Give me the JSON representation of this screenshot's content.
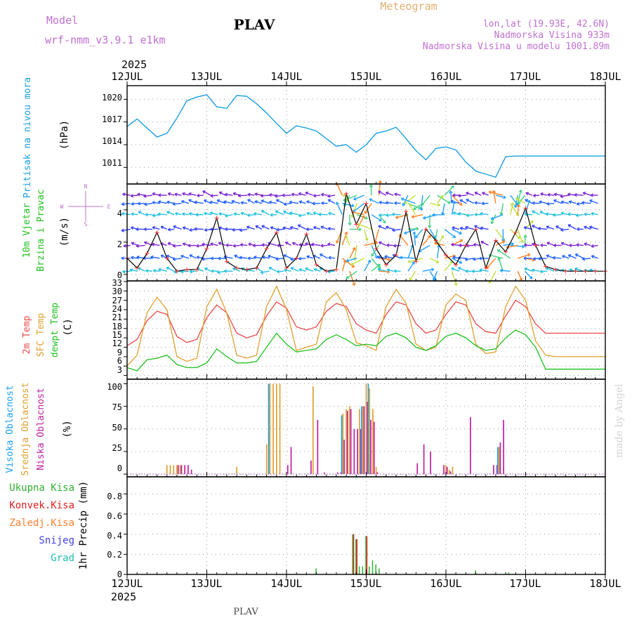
{
  "header": {
    "model_label": "Model",
    "model_name": "wrf-nmm_v3.9.1  e1km",
    "station": "PLAV",
    "meteogram": "Meteogram",
    "lonlat": "lon,lat (19.93E, 42.6N)",
    "elevation": "Nadmorska Visina 933m",
    "model_elevation": "Nadmorska Visina u modelu 1001.89m",
    "credit": "made by Angel",
    "footer_station": "PLAV"
  },
  "time_axis": {
    "year_top": "2025",
    "year_bottom": "2025",
    "ticks": [
      "12JUL",
      "13JUL",
      "14JUL",
      "15JUL",
      "16JUL",
      "17JUL",
      "18JUL"
    ]
  },
  "panels": {
    "pressure": {
      "title": "Pritisak na nivou mora",
      "unit": "(hPa)",
      "ticks": [
        "1011",
        "1014",
        "1017",
        "1020"
      ]
    },
    "wind": {
      "title1": "10m Vjetar",
      "title2": "Brzina i Pravac",
      "unit": "(m/s)",
      "ticks": [
        "0",
        "2",
        "4"
      ],
      "compass": {
        "n": "N",
        "s": "S",
        "w": "W",
        "e": "E"
      }
    },
    "temp": {
      "title1": "2m Temp",
      "title2": "SFC Temp",
      "title3": "dewpt Temp",
      "unit": "(C)",
      "ticks": [
        "3",
        "6",
        "9",
        "12",
        "15",
        "18",
        "21",
        "24",
        "27",
        "30",
        "33"
      ]
    },
    "cloud": {
      "title1": "Visoka Oblacnost",
      "title2": "Srednja Oblacnost",
      "title3": "Niska Oblacnost",
      "unit": "(%)",
      "ticks": [
        "0",
        "25",
        "50",
        "75",
        "100"
      ]
    },
    "precip": {
      "title": "1hr Precip (mm)",
      "ticks": [
        "0",
        "0.2",
        "0.4",
        "0.6",
        "0.8"
      ],
      "legend": [
        "Ukupna Kisa",
        "Konvek.Kisa",
        "Zaledj.Kisa",
        "Snijeg",
        "Grad"
      ]
    }
  },
  "colors": {
    "pressure": "#1aa0e0",
    "wind_line": "#000000",
    "wind_marks": "#ff3030",
    "t2m": "#e84848",
    "tsfc": "#e0a030",
    "dewpt": "#20c020",
    "cloud_high": "#1aa0e8",
    "cloud_mid": "#e0a030",
    "cloud_low": "#c020a0",
    "precip_total": "#30b030",
    "precip_conv": "#e02020",
    "precip_frz": "#ff8030",
    "precip_snow": "#4040e0",
    "precip_hail": "#20c0b0"
  },
  "chart_data": [
    {
      "type": "line",
      "title": "Pritisak na nivou mora",
      "ylabel": "(hPa)",
      "ylim": [
        1008.8,
        1021.8
      ],
      "x": [
        0,
        3,
        6,
        9,
        12,
        15,
        18,
        21,
        24,
        27,
        30,
        33,
        36,
        39,
        42,
        45,
        48,
        51,
        54,
        57,
        60,
        63,
        66,
        69,
        72,
        75,
        78,
        81,
        84,
        87,
        90,
        93,
        96,
        99,
        102,
        105,
        108,
        111,
        114,
        117,
        120,
        123,
        126,
        129,
        132,
        135,
        138,
        141,
        144
      ],
      "series": [
        {
          "name": "Pritisak na nivou mora",
          "values": [
            1016.4,
            1017.4,
            1016.2,
            1015.0,
            1015.5,
            1017.5,
            1019.8,
            1020.3,
            1020.6,
            1019.0,
            1018.8,
            1020.5,
            1020.4,
            1019.4,
            1018.2,
            1016.8,
            1015.5,
            1016.5,
            1016.2,
            1015.8,
            1014.8,
            1013.8,
            1014.0,
            1013.0,
            1014.0,
            1015.5,
            1015.8,
            1016.3,
            1014.8,
            1013.2,
            1012.0,
            1013.5,
            1013.7,
            1013.3,
            1011.7,
            1010.5,
            1010.1,
            1009.7,
            1012.4,
            1012.5,
            1012.5,
            1012.5,
            1012.5,
            1012.5,
            1012.5,
            1012.5,
            1012.5,
            1012.5,
            1012.5
          ]
        }
      ]
    },
    {
      "type": "line",
      "title": "10m Vjetar Brzina i Pravac",
      "ylabel": "(m/s)",
      "ylim": [
        -0.4,
        5.6
      ],
      "x": [
        0,
        3,
        6,
        9,
        12,
        15,
        18,
        21,
        24,
        27,
        30,
        33,
        36,
        39,
        42,
        45,
        48,
        51,
        54,
        57,
        60,
        63,
        66,
        69,
        72,
        75,
        78,
        81,
        84,
        87,
        90,
        93,
        96,
        99,
        102,
        105,
        108,
        111,
        114,
        117,
        120,
        123,
        126,
        129,
        132,
        135,
        138,
        141,
        144
      ],
      "series": [
        {
          "name": "10m Vjetar",
          "values": [
            1.0,
            0.4,
            1.3,
            2.6,
            1.0,
            0.2,
            0.3,
            0.3,
            1.6,
            3.5,
            0.8,
            0.4,
            0.3,
            0.4,
            1.6,
            2.6,
            0.4,
            1.0,
            2.5,
            0.6,
            0.2,
            0.3,
            5.0,
            3.1,
            4.4,
            1.6,
            0.6,
            1.2,
            3.9,
            0.8,
            2.8,
            2.1,
            1.2,
            0.6,
            1.8,
            2.8,
            0.4,
            2.1,
            1.4,
            2.6,
            4.1,
            1.8,
            0.5,
            0.3,
            0.2,
            0.2,
            0.2,
            0.2,
            0.2
          ]
        }
      ]
    },
    {
      "type": "line",
      "title": "2m Temp / SFC Temp / dewpt Temp",
      "ylabel": "(C)",
      "ylim": [
        1.8,
        33.2
      ],
      "x": [
        0,
        3,
        6,
        9,
        12,
        15,
        18,
        21,
        24,
        27,
        30,
        33,
        36,
        39,
        42,
        45,
        48,
        51,
        54,
        57,
        60,
        63,
        66,
        69,
        72,
        75,
        78,
        81,
        84,
        87,
        90,
        93,
        96,
        99,
        102,
        105,
        108,
        111,
        114,
        117,
        120,
        123,
        126,
        129,
        132,
        135,
        138,
        141,
        144
      ],
      "series": [
        {
          "name": "2m Temp",
          "values": [
            12.5,
            14.5,
            20.5,
            23.5,
            22.5,
            15.5,
            13.5,
            14.5,
            21.5,
            25.5,
            23.0,
            16.5,
            15.0,
            16.0,
            22.0,
            26.5,
            24.5,
            18.5,
            17.5,
            18.5,
            23.5,
            26.0,
            25.0,
            19.5,
            17.5,
            16.5,
            22.5,
            26.5,
            25.5,
            19.5,
            16.5,
            17.5,
            22.5,
            26.5,
            25.5,
            19.5,
            17.0,
            16.5,
            22.0,
            27.0,
            25.0,
            19.5,
            16.5,
            16.5,
            16.5,
            16.5,
            16.5,
            16.5,
            16.5
          ]
        },
        {
          "name": "SFC Temp",
          "values": [
            6.0,
            9.5,
            23.0,
            28.0,
            24.0,
            9.0,
            7.5,
            8.5,
            25.0,
            30.5,
            23.0,
            9.5,
            8.5,
            9.5,
            25.0,
            31.5,
            24.0,
            11.0,
            12.0,
            13.0,
            26.5,
            29.5,
            24.0,
            13.5,
            12.5,
            11.0,
            25.0,
            30.5,
            26.0,
            13.0,
            11.0,
            12.0,
            25.5,
            29.0,
            27.0,
            13.0,
            10.0,
            10.5,
            25.0,
            31.5,
            27.0,
            14.0,
            9.5,
            9.0,
            9.0,
            9.0,
            9.0,
            9.0,
            9.0
          ]
        },
        {
          "name": "dewpt Temp",
          "values": [
            5.5,
            4.5,
            8.0,
            8.5,
            9.5,
            6.5,
            5.5,
            5.5,
            7.0,
            11.5,
            9.0,
            7.0,
            7.0,
            7.5,
            12.0,
            16.5,
            13.0,
            10.5,
            11.0,
            11.5,
            14.5,
            16.0,
            14.5,
            12.5,
            13.0,
            12.5,
            15.5,
            16.5,
            15.0,
            12.0,
            11.0,
            12.5,
            15.5,
            16.5,
            15.0,
            12.5,
            11.0,
            11.5,
            15.0,
            17.5,
            16.0,
            12.0,
            5.0,
            5.0,
            5.0,
            5.0,
            5.0,
            5.0,
            5.0
          ]
        }
      ]
    },
    {
      "type": "bar",
      "title": "Visoka / Srednja / Niska Oblacnost",
      "ylabel": "(%)",
      "ylim": [
        -3,
        105
      ],
      "x": [
        12,
        13,
        14,
        15,
        16,
        17,
        18,
        19,
        21,
        33,
        42,
        43,
        44,
        45,
        46,
        47,
        48,
        49,
        55,
        56,
        57,
        59,
        63,
        64,
        65,
        66,
        67,
        68,
        69,
        70,
        71,
        72,
        73,
        74,
        75,
        87,
        89,
        91,
        95,
        96,
        97,
        98,
        103,
        110,
        111,
        112,
        113,
        115
      ],
      "series": [
        {
          "name": "Visoka Oblacnost",
          "values": [
            0,
            0,
            0,
            0,
            0,
            0,
            0,
            0,
            0,
            0,
            0,
            100,
            0,
            0,
            0,
            0,
            0,
            0,
            0,
            0,
            0,
            0,
            0,
            0,
            65,
            0,
            0,
            0,
            0,
            0,
            75,
            0,
            100,
            0,
            0,
            0,
            0,
            0,
            0,
            0,
            0,
            0,
            0,
            0,
            0,
            30,
            0,
            0
          ]
        },
        {
          "name": "Srednja Oblacnost",
          "values": [
            10,
            10,
            10,
            10,
            10,
            0,
            0,
            0,
            0,
            8,
            33,
            100,
            100,
            100,
            100,
            0,
            0,
            0,
            0,
            97,
            0,
            0,
            0,
            0,
            67,
            72,
            75,
            0,
            0,
            72,
            75,
            100,
            95,
            72,
            8,
            0,
            0,
            0,
            0,
            10,
            5,
            8,
            0,
            0,
            0,
            30,
            0,
            0
          ]
        },
        {
          "name": "Niska Oblacnost",
          "values": [
            0,
            0,
            0,
            10,
            10,
            10,
            10,
            5,
            0,
            0,
            0,
            0,
            0,
            0,
            0,
            0,
            10,
            30,
            15,
            0,
            60,
            2,
            2,
            2,
            38,
            70,
            72,
            50,
            50,
            50,
            75,
            80,
            60,
            58,
            2,
            12,
            33,
            25,
            10,
            8,
            3,
            0,
            63,
            10,
            10,
            35,
            60,
            0
          ]
        }
      ]
    },
    {
      "type": "bar",
      "title": "1hr Precip (mm)",
      "ylabel": "1hr Precip (mm)",
      "ylim": [
        0,
        0.97
      ],
      "x": [
        55,
        56,
        57,
        64,
        65,
        66,
        67,
        68,
        69,
        70,
        71,
        72,
        73,
        74,
        75,
        76,
        77,
        87,
        88,
        89,
        90,
        91,
        92,
        93,
        94,
        95,
        96,
        97,
        98,
        99,
        100,
        101,
        102,
        103,
        104,
        105,
        106,
        107,
        108,
        109,
        110,
        111,
        112,
        113,
        114,
        115,
        116,
        117,
        118
      ],
      "series": [
        {
          "name": "Ukupna Kisa",
          "values": [
            0,
            0,
            0.06,
            0,
            0,
            0,
            0,
            0.4,
            0.35,
            0.08,
            0.08,
            0.38,
            0.08,
            0.14,
            0.1,
            0.06,
            0,
            0,
            0,
            0,
            0,
            0,
            0,
            0,
            0,
            0,
            0,
            0,
            0,
            0,
            0,
            0,
            0,
            0,
            0,
            0.04,
            0,
            0,
            0,
            0,
            0,
            0,
            0,
            0,
            0,
            0.02,
            0,
            0,
            0
          ]
        },
        {
          "name": "Konvek.Kisa",
          "values": [
            0,
            0,
            0,
            0,
            0,
            0,
            0,
            0.4,
            0.35,
            0,
            0,
            0.38,
            0,
            0,
            0,
            0,
            0,
            0,
            0,
            0,
            0,
            0,
            0,
            0,
            0,
            0,
            0,
            0,
            0,
            0,
            0,
            0,
            0,
            0,
            0,
            0,
            0,
            0,
            0,
            0,
            0,
            0,
            0,
            0,
            0,
            0,
            0,
            0,
            0
          ]
        },
        {
          "name": "Zaledj.Kisa",
          "values": [
            0,
            0,
            0,
            0,
            0,
            0,
            0,
            0,
            0,
            0,
            0,
            0,
            0,
            0,
            0,
            0,
            0,
            0,
            0,
            0,
            0,
            0,
            0,
            0,
            0,
            0,
            0,
            0,
            0,
            0,
            0,
            0,
            0,
            0,
            0,
            0,
            0,
            0,
            0,
            0,
            0,
            0,
            0,
            0,
            0,
            0,
            0,
            0,
            0
          ]
        },
        {
          "name": "Snijeg",
          "values": [
            0,
            0,
            0,
            0,
            0,
            0,
            0,
            0,
            0,
            0,
            0,
            0,
            0,
            0,
            0,
            0,
            0,
            0,
            0,
            0,
            0,
            0,
            0,
            0,
            0,
            0,
            0,
            0,
            0,
            0,
            0,
            0,
            0,
            0,
            0,
            0,
            0,
            0,
            0,
            0,
            0,
            0,
            0,
            0,
            0,
            0,
            0,
            0,
            0
          ]
        },
        {
          "name": "Grad",
          "values": [
            0,
            0,
            0,
            0,
            0,
            0,
            0,
            0,
            0,
            0,
            0,
            0,
            0,
            0,
            0,
            0,
            0,
            0,
            0,
            0,
            0,
            0,
            0,
            0,
            0,
            0,
            0,
            0,
            0,
            0,
            0,
            0,
            0,
            0,
            0,
            0,
            0,
            0,
            0,
            0,
            0,
            0,
            0,
            0,
            0,
            0,
            0,
            0,
            0
          ]
        }
      ]
    }
  ]
}
